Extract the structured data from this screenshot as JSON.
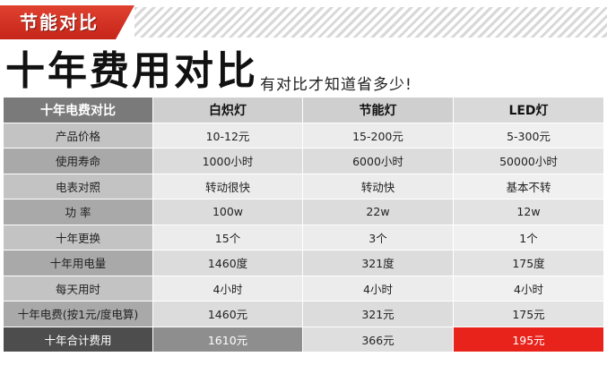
{
  "banner": {
    "tag": "节能对比"
  },
  "headline": "十年费用对比",
  "subheadline": "有对比才知道省多少!",
  "table": {
    "headers": [
      "十年电费对比",
      "白炽灯",
      "节能灯",
      "LED灯"
    ],
    "rows": [
      [
        "产品价格",
        "10-12元",
        "15-200元",
        "5-300元"
      ],
      [
        "使用寿命",
        "1000小时",
        "6000小时",
        "50000小时"
      ],
      [
        "电表对照",
        "转动很快",
        "转动快",
        "基本不转"
      ],
      [
        "功    率",
        "100w",
        "22w",
        "12w"
      ],
      [
        "十年更换",
        "15个",
        "3个",
        "1个"
      ],
      [
        "十年用电量",
        "1460度",
        "321度",
        "175度"
      ],
      [
        "每天用时",
        "4小时",
        "4小时",
        "4小时"
      ],
      [
        "十年电费(按1元/度电算)",
        "1460元",
        "321元",
        "175元"
      ]
    ],
    "total": [
      "十年合计费用",
      "1610元",
      "366元",
      "195元"
    ]
  },
  "colors": {
    "accent_red": "#e8231b",
    "dark_gray": "#4d4d4d"
  }
}
